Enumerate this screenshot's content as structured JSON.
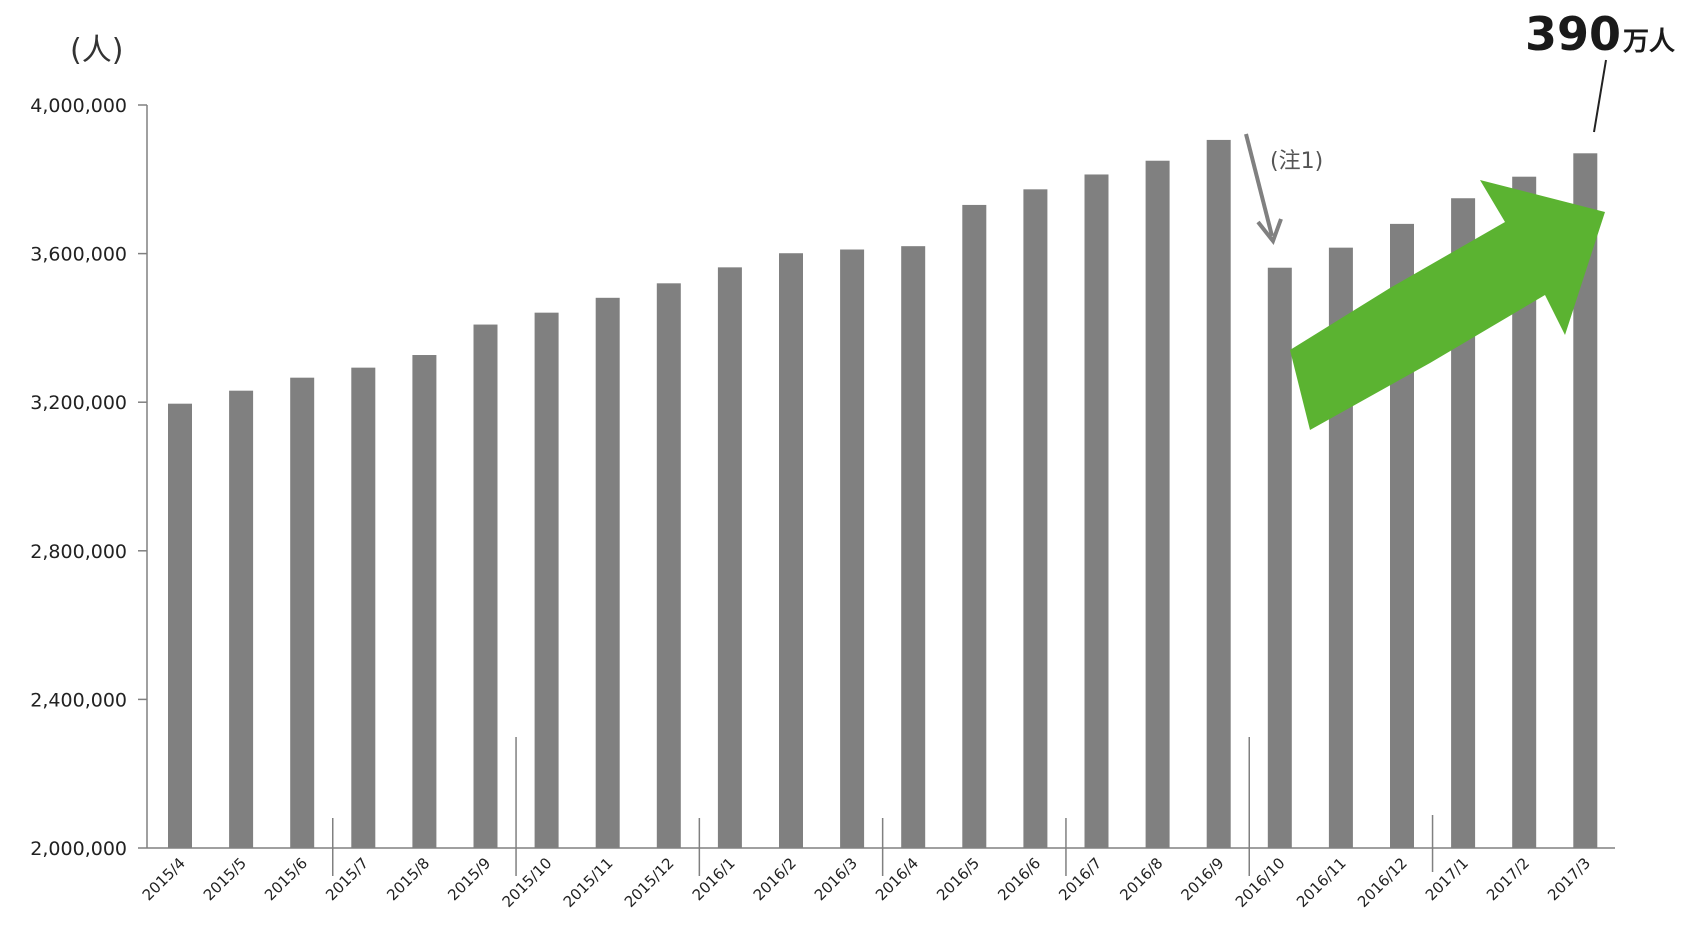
{
  "chart_data": {
    "type": "bar",
    "ylabel": "(人)",
    "ylim": [
      2000000,
      4000000
    ],
    "yticks": [
      2000000,
      2400000,
      2800000,
      3200000,
      3600000,
      4000000
    ],
    "ytick_labels": [
      "2,000,000",
      "2,400,000",
      "2,800,000",
      "3,200,000",
      "3,600,000",
      "4,000,000"
    ],
    "categories": [
      "2015/4",
      "2015/5",
      "2015/6",
      "2015/7",
      "2015/8",
      "2015/9",
      "2015/10",
      "2015/11",
      "2015/12",
      "2016/1",
      "2016/2",
      "2016/3",
      "2016/4",
      "2016/5",
      "2016/6",
      "2016/7",
      "2016/8",
      "2016/9",
      "2016/10",
      "2016/11",
      "2016/12",
      "2017/1",
      "2017/2",
      "2017/3"
    ],
    "values": [
      3196000,
      3231000,
      3266000,
      3293000,
      3327000,
      3409000,
      3441000,
      3481000,
      3520000,
      3563000,
      3601000,
      3611000,
      3620000,
      3731000,
      3773000,
      3813000,
      3850000,
      3906000,
      3562000,
      3616000,
      3680000,
      3749000,
      3807000,
      3870000
    ],
    "bar_color": "#808080",
    "annotations": {
      "note": "(注1)",
      "callout_number": "390",
      "callout_unit": "万人",
      "trend_arrow_color": "#5bb331",
      "note_arrow_color": "#808080"
    }
  }
}
